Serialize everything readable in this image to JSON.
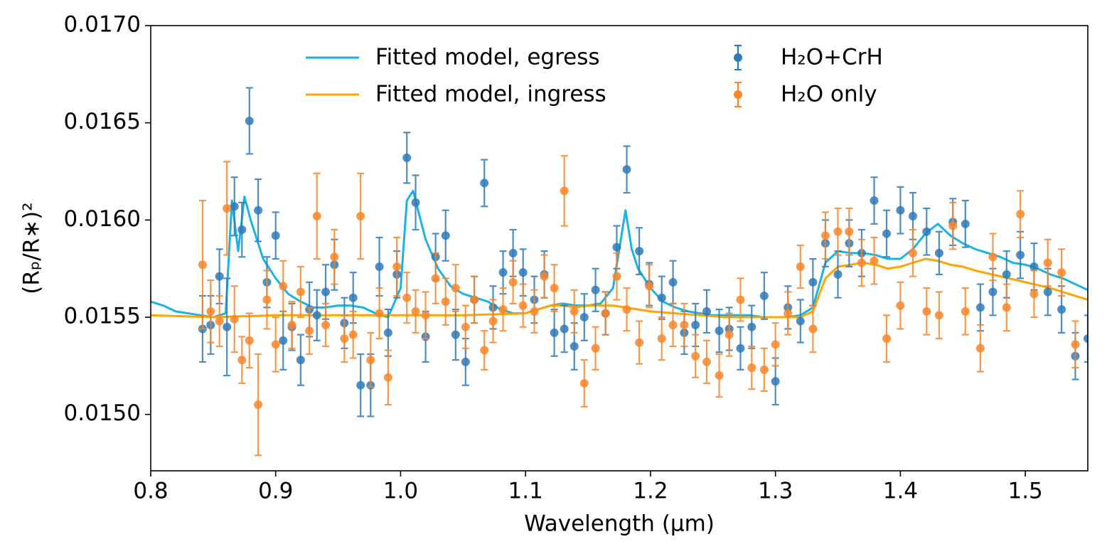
{
  "chart_data": {
    "type": "line",
    "x_label": "Wavelength (μm)",
    "y_label": "(Rₚ/R∗)²",
    "xlim": [
      0.8,
      1.55
    ],
    "ylim": [
      0.01471,
      0.017
    ],
    "xticks": [
      0.8,
      0.9,
      {
        "value": 1,
        "label": "1.0"
      },
      1.1,
      1.2,
      1.3,
      1.4,
      1.5
    ],
    "yticks": [
      {
        "value": 0.015,
        "label": "0.0150"
      },
      0.0155,
      {
        "value": 0.016,
        "label": "0.0160"
      },
      0.0165,
      {
        "value": 0.017,
        "label": "0.0170"
      }
    ],
    "legend": "upper right",
    "grid": false,
    "series": [
      {
        "name": "Fitted model, egress",
        "type": "line",
        "color": "#1ab3e6",
        "x": [
          0.8,
          0.81,
          0.82,
          0.83,
          0.84,
          0.85,
          0.86,
          0.865,
          0.87,
          0.875,
          0.88,
          0.89,
          0.9,
          0.91,
          0.92,
          0.93,
          0.94,
          0.95,
          0.96,
          0.97,
          0.98,
          0.99,
          1.0,
          1.005,
          1.01,
          1.02,
          1.03,
          1.04,
          1.05,
          1.06,
          1.07,
          1.08,
          1.09,
          1.1,
          1.11,
          1.12,
          1.13,
          1.14,
          1.15,
          1.16,
          1.17,
          1.18,
          1.185,
          1.19,
          1.2,
          1.21,
          1.22,
          1.23,
          1.24,
          1.25,
          1.26,
          1.27,
          1.28,
          1.29,
          1.3,
          1.31,
          1.32,
          1.33,
          1.34,
          1.35,
          1.36,
          1.37,
          1.38,
          1.39,
          1.4,
          1.41,
          1.42,
          1.43,
          1.44,
          1.45,
          1.46,
          1.47,
          1.48,
          1.49,
          1.5,
          1.51,
          1.52,
          1.53,
          1.54,
          1.55
        ],
        "values": [
          0.01558,
          0.01556,
          0.01553,
          0.01552,
          0.01551,
          0.0155,
          0.01552,
          0.0161,
          0.01584,
          0.01612,
          0.016,
          0.0158,
          0.0157,
          0.01562,
          0.01558,
          0.01555,
          0.01555,
          0.01556,
          0.01556,
          0.01555,
          0.01552,
          0.0155,
          0.01565,
          0.0161,
          0.01615,
          0.0159,
          0.01575,
          0.01566,
          0.01562,
          0.0156,
          0.01558,
          0.01554,
          0.01552,
          0.01552,
          0.01554,
          0.01556,
          0.01557,
          0.01556,
          0.01556,
          0.01557,
          0.01565,
          0.01605,
          0.01585,
          0.01575,
          0.01565,
          0.01558,
          0.01555,
          0.01553,
          0.01552,
          0.01551,
          0.01551,
          0.01551,
          0.01551,
          0.0155,
          0.0155,
          0.0155,
          0.01551,
          0.01555,
          0.01578,
          0.01584,
          0.01583,
          0.01583,
          0.01582,
          0.0158,
          0.0158,
          0.01585,
          0.01593,
          0.01598,
          0.01592,
          0.01588,
          0.01585,
          0.01583,
          0.01581,
          0.01578,
          0.01577,
          0.01575,
          0.01572,
          0.0157,
          0.01567,
          0.01564
        ]
      },
      {
        "name": "Fitted model, ingress",
        "type": "line",
        "color": "#ffa500",
        "x": [
          0.8,
          0.85,
          0.9,
          0.95,
          1.0,
          1.05,
          1.1,
          1.11,
          1.12,
          1.13,
          1.14,
          1.15,
          1.16,
          1.17,
          1.18,
          1.19,
          1.2,
          1.22,
          1.24,
          1.26,
          1.28,
          1.3,
          1.32,
          1.33,
          1.34,
          1.35,
          1.36,
          1.37,
          1.38,
          1.39,
          1.4,
          1.41,
          1.42,
          1.43,
          1.44,
          1.45,
          1.46,
          1.48,
          1.5,
          1.52,
          1.55
        ],
        "values": [
          0.01551,
          0.0155,
          0.01551,
          0.01551,
          0.01551,
          0.01551,
          0.01552,
          0.01554,
          0.01556,
          0.01556,
          0.01555,
          0.01556,
          0.01556,
          0.01556,
          0.01555,
          0.01554,
          0.01553,
          0.01552,
          0.01551,
          0.0155,
          0.0155,
          0.0155,
          0.0155,
          0.01553,
          0.0157,
          0.01576,
          0.01577,
          0.01578,
          0.01577,
          0.01575,
          0.01576,
          0.01578,
          0.0158,
          0.01579,
          0.01577,
          0.01576,
          0.01574,
          0.01571,
          0.01568,
          0.01565,
          0.01559
        ]
      },
      {
        "name": "H₂O+CrH",
        "type": "errorbar",
        "color": "#2f7ab8",
        "x": [
          0.8415,
          0.848,
          0.855,
          0.861,
          0.867,
          0.873,
          0.879,
          0.886,
          0.893,
          0.9,
          0.906,
          0.913,
          0.92,
          0.927,
          0.933,
          0.94,
          0.947,
          0.955,
          0.962,
          0.968,
          0.976,
          0.983,
          0.99,
          0.997,
          1.005,
          1.012,
          1.02,
          1.028,
          1.036,
          1.044,
          1.052,
          1.059,
          1.067,
          1.074,
          1.082,
          1.09,
          1.098,
          1.107,
          1.115,
          1.123,
          1.131,
          1.139,
          1.147,
          1.156,
          1.164,
          1.173,
          1.181,
          1.191,
          1.199,
          1.209,
          1.218,
          1.227,
          1.236,
          1.245,
          1.255,
          1.263,
          1.272,
          1.281,
          1.291,
          1.3,
          1.31,
          1.32,
          1.33,
          1.34,
          1.35,
          1.359,
          1.369,
          1.379,
          1.389,
          1.4,
          1.41,
          1.421,
          1.431,
          1.442,
          1.452,
          1.464,
          1.474,
          1.485,
          1.496,
          1.507,
          1.518,
          1.529,
          1.54,
          1.55
        ],
        "values": [
          0.01544,
          0.01546,
          0.01571,
          0.01545,
          0.01607,
          0.01595,
          0.01651,
          0.01605,
          0.01568,
          0.01592,
          0.01538,
          0.01545,
          0.01528,
          0.01554,
          0.01551,
          0.01563,
          0.01577,
          0.01547,
          0.0156,
          0.01515,
          0.01515,
          0.01576,
          0.01542,
          0.01572,
          0.01632,
          0.01609,
          0.0154,
          0.01581,
          0.01592,
          0.01541,
          0.01527,
          0.01559,
          0.01619,
          0.01555,
          0.01573,
          0.01583,
          0.01573,
          0.01559,
          0.01572,
          0.01542,
          0.01544,
          0.01535,
          0.0155,
          0.01564,
          0.01552,
          0.01586,
          0.01626,
          0.01584,
          0.01567,
          0.0156,
          0.01568,
          0.01542,
          0.01546,
          0.01553,
          0.01543,
          0.01544,
          0.01534,
          0.01545,
          0.01561,
          0.01517,
          0.01555,
          0.01548,
          0.01568,
          0.01588,
          0.01572,
          0.01588,
          0.01583,
          0.0161,
          0.01593,
          0.01605,
          0.01602,
          0.01594,
          0.01583,
          0.01599,
          0.01598,
          0.01555,
          0.01563,
          0.01572,
          0.01582,
          0.01576,
          0.01563,
          0.01554,
          0.0153,
          0.01539
        ],
        "errors": [
          0.00017,
          0.00015,
          0.00014,
          0.00025,
          0.00015,
          0.00014,
          0.00017,
          0.00016,
          0.00013,
          0.00012,
          0.00015,
          0.00012,
          0.00013,
          0.00014,
          0.00013,
          0.00014,
          0.00013,
          0.00013,
          0.00013,
          0.00016,
          0.00016,
          0.00015,
          0.00012,
          0.00012,
          0.00013,
          0.00014,
          0.00013,
          0.00012,
          0.00013,
          0.00013,
          0.00012,
          0.00012,
          0.00012,
          0.00011,
          0.00011,
          0.00012,
          0.00012,
          0.00012,
          0.00012,
          0.00012,
          0.00012,
          0.00012,
          0.00012,
          0.00011,
          0.00011,
          0.00011,
          0.00012,
          0.00012,
          0.00011,
          0.00011,
          0.00011,
          0.00011,
          0.00011,
          0.00011,
          0.00011,
          0.00011,
          0.00011,
          0.00011,
          0.00012,
          0.00012,
          0.00011,
          0.00011,
          0.00012,
          0.00012,
          0.00012,
          0.00012,
          0.00012,
          0.00012,
          0.00012,
          0.00012,
          0.00012,
          0.00012,
          0.00011,
          0.00012,
          0.00012,
          0.00012,
          0.00012,
          0.00012,
          0.00012,
          0.00012,
          0.00012,
          0.00012,
          0.00012,
          0.00012
        ]
      },
      {
        "name": "H₂O only",
        "type": "errorbar",
        "color": "#f9862a",
        "x": [
          0.8415,
          0.848,
          0.855,
          0.861,
          0.867,
          0.873,
          0.879,
          0.886,
          0.893,
          0.9,
          0.906,
          0.913,
          0.92,
          0.927,
          0.933,
          0.94,
          0.947,
          0.955,
          0.962,
          0.968,
          0.976,
          0.983,
          0.99,
          0.997,
          1.005,
          1.012,
          1.02,
          1.028,
          1.036,
          1.044,
          1.052,
          1.059,
          1.067,
          1.074,
          1.082,
          1.09,
          1.098,
          1.107,
          1.115,
          1.123,
          1.131,
          1.139,
          1.147,
          1.156,
          1.164,
          1.173,
          1.181,
          1.191,
          1.199,
          1.209,
          1.218,
          1.227,
          1.236,
          1.245,
          1.255,
          1.263,
          1.272,
          1.281,
          1.291,
          1.3,
          1.31,
          1.32,
          1.33,
          1.34,
          1.35,
          1.359,
          1.369,
          1.379,
          1.389,
          1.4,
          1.41,
          1.421,
          1.431,
          1.442,
          1.452,
          1.464,
          1.474,
          1.485,
          1.496,
          1.507,
          1.518,
          1.529,
          1.54
        ],
        "values": [
          0.01577,
          0.01553,
          0.01548,
          0.01606,
          0.01549,
          0.01528,
          0.01538,
          0.01505,
          0.01559,
          0.01536,
          0.01566,
          0.01546,
          0.01563,
          0.01543,
          0.01602,
          0.01546,
          0.01581,
          0.01539,
          0.01541,
          0.01602,
          0.01528,
          0.01552,
          0.01519,
          0.01576,
          0.0156,
          0.01553,
          0.01551,
          0.0157,
          0.01558,
          0.01565,
          0.01545,
          0.01559,
          0.01533,
          0.01548,
          0.01554,
          0.01568,
          0.01556,
          0.01553,
          0.01571,
          0.01565,
          0.01615,
          0.01553,
          0.01516,
          0.01534,
          0.01552,
          0.01571,
          0.01554,
          0.01537,
          0.01566,
          0.01539,
          0.01546,
          0.01546,
          0.0153,
          0.01527,
          0.0152,
          0.01541,
          0.01559,
          0.01524,
          0.01523,
          0.01536,
          0.01552,
          0.01576,
          0.01544,
          0.01592,
          0.01594,
          0.01594,
          0.01578,
          0.01579,
          0.01539,
          0.01556,
          0.01583,
          0.01553,
          0.01551,
          0.01597,
          0.01553,
          0.01534,
          0.01581,
          0.01555,
          0.01603,
          0.01562,
          0.01578,
          0.01573,
          0.01536
        ],
        "errors": [
          0.00033,
          0.00016,
          0.00013,
          0.00024,
          0.00017,
          0.00012,
          0.00014,
          0.00026,
          0.00015,
          0.00014,
          0.00013,
          0.00012,
          0.00013,
          0.00012,
          0.00022,
          0.00011,
          0.00014,
          0.00012,
          0.00012,
          0.00022,
          0.00014,
          0.00013,
          0.00014,
          0.00015,
          0.00013,
          0.00011,
          0.00012,
          0.00013,
          0.00012,
          0.00012,
          0.00011,
          0.00012,
          0.0001,
          0.00011,
          0.00011,
          0.00011,
          0.00011,
          0.00011,
          0.00011,
          0.00012,
          0.00018,
          0.00011,
          0.00012,
          0.00011,
          0.00011,
          0.00012,
          0.00011,
          0.00011,
          0.00011,
          0.00011,
          0.00011,
          0.00011,
          0.00011,
          0.00011,
          0.00011,
          0.00011,
          0.00011,
          0.00011,
          0.00011,
          0.00011,
          0.00011,
          0.00011,
          0.00012,
          0.00012,
          0.00012,
          0.00012,
          0.00012,
          0.00012,
          0.00012,
          0.00012,
          0.00012,
          0.00012,
          0.00012,
          0.00012,
          0.00012,
          0.00012,
          0.00012,
          0.00012,
          0.00012,
          0.00012,
          0.00012,
          0.00012,
          0.00012
        ]
      }
    ]
  }
}
